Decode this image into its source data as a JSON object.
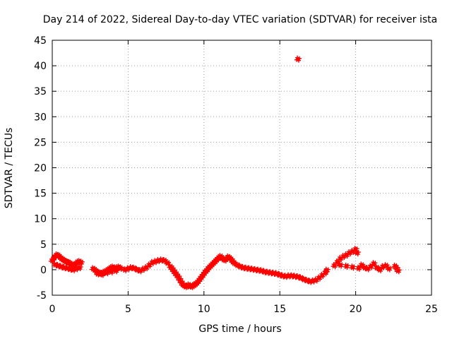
{
  "chart_data": {
    "type": "scatter",
    "title": "Day 214 of 2022, Sidereal Day-to-day VTEC variation (SDTVAR) for receiver ista",
    "xlabel": "GPS time / hours",
    "ylabel": "SDTVAR / TECUs",
    "xlim": [
      0,
      25
    ],
    "ylim": [
      -5,
      45
    ],
    "xticks": [
      0,
      5,
      10,
      15,
      20,
      25
    ],
    "yticks": [
      -5,
      0,
      5,
      10,
      15,
      20,
      25,
      30,
      35,
      40,
      45
    ],
    "grid": true,
    "marker": "+",
    "color": "#ff0000",
    "series": [
      {
        "name": "SDTVAR",
        "x": [
          0.0,
          0.1,
          0.2,
          0.3,
          0.4,
          0.5,
          0.6,
          0.7,
          0.8,
          0.9,
          1.0,
          1.1,
          1.2,
          1.3,
          1.4,
          1.5,
          1.6,
          1.7,
          1.8,
          1.9,
          0.2,
          0.4,
          0.6,
          0.8,
          1.0,
          1.2,
          1.4,
          1.6,
          1.8,
          2.7,
          2.8,
          2.9,
          3.0,
          3.1,
          3.2,
          3.3,
          3.4,
          3.5,
          3.6,
          3.7,
          3.8,
          3.9,
          4.0,
          4.1,
          4.2,
          4.3,
          4.4,
          4.5,
          3.0,
          3.3,
          3.6,
          3.9,
          4.2,
          4.8,
          5.0,
          5.2,
          5.4,
          5.6,
          5.8,
          6.0,
          6.2,
          6.4,
          6.6,
          6.8,
          7.0,
          7.2,
          7.4,
          7.6,
          7.8,
          7.9,
          8.0,
          8.1,
          8.2,
          8.3,
          8.4,
          8.5,
          8.6,
          8.7,
          8.8,
          8.9,
          9.0,
          9.1,
          9.2,
          9.3,
          9.4,
          9.5,
          9.6,
          9.7,
          9.8,
          9.9,
          10.0,
          10.1,
          10.2,
          10.3,
          10.4,
          10.5,
          10.6,
          10.7,
          10.8,
          10.9,
          11.0,
          11.1,
          11.2,
          11.3,
          11.4,
          11.5,
          11.6,
          11.7,
          11.8,
          11.9,
          12.0,
          12.2,
          12.4,
          12.6,
          12.8,
          13.0,
          13.2,
          13.4,
          13.6,
          13.8,
          14.0,
          14.2,
          14.4,
          14.6,
          14.8,
          15.0,
          15.2,
          15.4,
          15.6,
          15.8,
          16.0,
          16.2,
          16.4,
          16.6,
          16.8,
          17.0,
          17.2,
          17.4,
          17.6,
          17.8,
          18.0,
          18.1,
          16.2,
          18.6,
          18.8,
          19.0,
          19.2,
          19.4,
          19.6,
          19.8,
          20.0,
          20.1,
          19.0,
          19.4,
          19.8,
          20.2,
          20.4,
          20.6,
          20.8,
          21.0,
          21.2,
          21.4,
          21.6,
          21.8,
          22.0,
          22.2,
          22.6,
          22.7,
          22.8
        ],
        "y": [
          1.8,
          2.2,
          2.6,
          2.9,
          2.8,
          2.5,
          2.2,
          2.0,
          1.8,
          1.6,
          1.5,
          1.4,
          1.2,
          1.0,
          0.8,
          1.0,
          1.3,
          1.5,
          1.6,
          1.4,
          1.0,
          0.8,
          0.6,
          0.4,
          0.3,
          0.1,
          0.0,
          0.2,
          0.4,
          0.2,
          0.0,
          -0.3,
          -0.5,
          -0.6,
          -0.8,
          -0.7,
          -0.5,
          -0.4,
          -0.2,
          0.0,
          0.2,
          0.4,
          0.5,
          0.3,
          0.2,
          0.4,
          0.5,
          0.3,
          -0.8,
          -0.9,
          -0.6,
          -0.4,
          -0.2,
          0.0,
          0.2,
          0.4,
          0.3,
          0.0,
          -0.2,
          0.1,
          0.4,
          0.9,
          1.4,
          1.6,
          1.8,
          1.9,
          1.8,
          1.3,
          0.6,
          0.2,
          -0.2,
          -0.6,
          -1.0,
          -1.4,
          -1.9,
          -2.4,
          -2.9,
          -3.1,
          -3.3,
          -3.2,
          -3.0,
          -3.2,
          -3.3,
          -3.1,
          -2.9,
          -2.7,
          -2.4,
          -2.0,
          -1.6,
          -1.2,
          -0.8,
          -0.4,
          -0.1,
          0.3,
          0.6,
          0.9,
          1.2,
          1.5,
          1.8,
          2.1,
          2.4,
          2.6,
          2.3,
          2.0,
          1.9,
          2.2,
          2.5,
          2.3,
          2.0,
          1.6,
          1.3,
          0.9,
          0.6,
          0.4,
          0.3,
          0.2,
          0.1,
          0.0,
          -0.1,
          -0.2,
          -0.4,
          -0.5,
          -0.6,
          -0.7,
          -0.8,
          -1.0,
          -1.2,
          -1.3,
          -1.2,
          -1.2,
          -1.3,
          -1.4,
          -1.6,
          -1.9,
          -2.1,
          -2.3,
          -2.2,
          -2.0,
          -1.6,
          -1.1,
          -0.6,
          -0.1,
          41.3,
          0.8,
          1.5,
          2.2,
          2.6,
          2.9,
          3.3,
          3.6,
          4.0,
          3.3,
          0.9,
          0.7,
          0.5,
          0.3,
          0.9,
          0.4,
          0.2,
          0.6,
          1.2,
          0.4,
          0.0,
          0.6,
          0.8,
          0.2,
          0.7,
          0.3,
          -0.2
        ]
      }
    ]
  }
}
